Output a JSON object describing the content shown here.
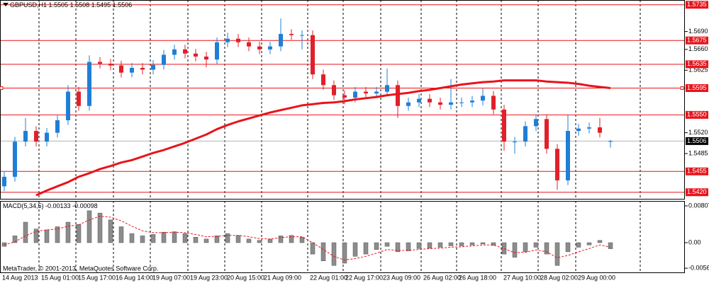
{
  "chart_data": [
    {
      "type": "candlestick",
      "title": "GBPUSD,H1",
      "up_color": "#1f7fd6",
      "down_color": "#e0202a",
      "open": [
        1.543,
        1.5446,
        1.5505,
        1.5523,
        1.5505,
        1.552,
        1.5541,
        1.5589,
        1.5565,
        1.5639,
        1.5636,
        1.5633,
        1.5621,
        1.5629,
        1.5626,
        1.5634,
        1.5651,
        1.566,
        1.5653,
        1.5648,
        1.5643,
        1.5672,
        1.5678,
        1.5672,
        1.5665,
        1.566,
        1.5665,
        1.5686,
        1.5684,
        1.5684,
        1.5618,
        1.56,
        1.5583,
        1.5579,
        1.5589,
        1.5586,
        1.5589,
        1.56,
        1.5565,
        1.5571,
        1.5577,
        1.5571,
        1.5567,
        1.5571,
        1.5571,
        1.5574,
        1.5582,
        1.5559,
        1.5505,
        1.5505,
        1.5531,
        1.5543,
        1.5493,
        1.544,
        1.5523,
        1.5527,
        1.5529,
        1.5505
      ],
      "high": [
        1.5454,
        1.5513,
        1.5545,
        1.5531,
        1.5528,
        1.5549,
        1.56,
        1.5597,
        1.565,
        1.5647,
        1.5644,
        1.5641,
        1.5637,
        1.5637,
        1.5642,
        1.5659,
        1.5668,
        1.5668,
        1.5661,
        1.5656,
        1.568,
        1.5688,
        1.5686,
        1.568,
        1.5673,
        1.5673,
        1.5712,
        1.5694,
        1.5692,
        1.5692,
        1.5626,
        1.5608,
        1.5591,
        1.5597,
        1.5597,
        1.5597,
        1.5628,
        1.5608,
        1.5579,
        1.5585,
        1.5585,
        1.5579,
        1.561,
        1.5579,
        1.5582,
        1.5595,
        1.559,
        1.5567,
        1.5513,
        1.5539,
        1.5551,
        1.5551,
        1.5501,
        1.555,
        1.5535,
        1.5537,
        1.5545,
        1.5508
      ],
      "low": [
        1.5422,
        1.5438,
        1.5497,
        1.5497,
        1.5497,
        1.5512,
        1.5533,
        1.5557,
        1.5557,
        1.5628,
        1.5625,
        1.5613,
        1.5613,
        1.5618,
        1.5618,
        1.5626,
        1.5643,
        1.5645,
        1.564,
        1.563,
        1.5635,
        1.5664,
        1.5664,
        1.5657,
        1.5652,
        1.5652,
        1.5657,
        1.5676,
        1.566,
        1.561,
        1.5592,
        1.5575,
        1.5568,
        1.5571,
        1.5578,
        1.5578,
        1.5581,
        1.5545,
        1.5557,
        1.5563,
        1.5563,
        1.5559,
        1.5559,
        1.5563,
        1.5563,
        1.5566,
        1.5551,
        1.549,
        1.5485,
        1.5497,
        1.5523,
        1.5485,
        1.5424,
        1.5432,
        1.5515,
        1.5519,
        1.5512,
        1.5495
      ],
      "close": [
        1.5446,
        1.5505,
        1.5523,
        1.5505,
        1.552,
        1.5541,
        1.5589,
        1.5565,
        1.5639,
        1.5636,
        1.5633,
        1.5621,
        1.5629,
        1.5626,
        1.5634,
        1.5651,
        1.566,
        1.5653,
        1.5648,
        1.5643,
        1.5672,
        1.5678,
        1.5672,
        1.5665,
        1.566,
        1.5665,
        1.5686,
        1.5684,
        1.5684,
        1.5618,
        1.56,
        1.5583,
        1.5579,
        1.5589,
        1.5586,
        1.5589,
        1.56,
        1.5565,
        1.5571,
        1.5577,
        1.5571,
        1.5567,
        1.5571,
        1.5571,
        1.5574,
        1.5582,
        1.5559,
        1.5505,
        1.5505,
        1.5531,
        1.5543,
        1.5493,
        1.544,
        1.5523,
        1.5527,
        1.5529,
        1.552,
        1.5506
      ],
      "ma": {
        "color": "#e8141b",
        "values": [
          null,
          null,
          null,
          1.5415,
          1.5423,
          1.543,
          1.5437,
          1.5446,
          1.5452,
          1.5459,
          1.5464,
          1.547,
          1.5474,
          1.548,
          1.5486,
          1.5491,
          1.5497,
          1.5503,
          1.551,
          1.5517,
          1.5526,
          1.5533,
          1.5539,
          1.5544,
          1.5549,
          1.5554,
          1.5558,
          1.5562,
          1.5566,
          1.5568,
          1.557,
          1.5571,
          1.5573,
          1.5576,
          1.5578,
          1.558,
          1.5583,
          1.5585,
          1.5587,
          1.559,
          1.5592,
          1.5595,
          1.5598,
          1.5601,
          1.5603,
          1.5605,
          1.5606,
          1.5608,
          1.5608,
          1.5608,
          1.5608,
          1.5606,
          1.5605,
          1.5604,
          1.5602,
          1.5599,
          1.5597,
          1.5595
        ]
      },
      "ylim": [
        1.5409,
        1.5743
      ],
      "yticks": [
        {
          "value": 1.569,
          "label": "1.5690"
        },
        {
          "value": 1.566,
          "label": "1.5660"
        },
        1.5625,
        {
          "value": 1.552,
          "label": "1.5520"
        },
        1.5485
      ],
      "level_color": "#e8141b",
      "levels": [
        1.5735,
        1.5675,
        1.5635,
        1.5595,
        {
          "value": 1.555,
          "label": "1.5550"
        },
        1.5455,
        {
          "value": 1.542,
          "label": "1.5420"
        }
      ],
      "last_price": 1.5506,
      "x_labels": [
        "14 Aug 2013",
        "15 Aug 01:00",
        "15 Aug 17:00",
        "16 Aug 14:00",
        "19 Aug 07:00",
        "19 Aug 23:00",
        "20 Aug 15:00",
        "21 Aug 09:00",
        "22 Aug 01:00",
        "22 Aug 17:00",
        "23 Aug 09:00",
        "26 Aug 02:00",
        "26 Aug 18:00",
        "27 Aug 10:00",
        "28 Aug 02:00",
        "29 Aug 00:00"
      ]
    },
    {
      "type": "bar",
      "title": "MACD(5,34,5)",
      "color": "#8c8c8c",
      "signal_color": "#e8141b",
      "values": [
        -0.0008,
        0.0015,
        0.0045,
        0.003,
        0.0028,
        0.0035,
        0.0045,
        0.004,
        0.007,
        0.0065,
        0.005,
        0.0035,
        0.002,
        0.0015,
        0.0018,
        0.0023,
        0.0024,
        0.002,
        0.0012,
        0.0008,
        0.0015,
        0.002,
        0.0016,
        0.0008,
        0.0005,
        0.0008,
        0.0015,
        0.0016,
        0.0012,
        -0.0025,
        -0.004,
        -0.005,
        -0.0045,
        -0.003,
        -0.0025,
        -0.0015,
        -0.0008,
        -0.002,
        -0.0018,
        -0.0013,
        -0.0012,
        -0.001,
        -0.0007,
        -0.0007,
        -0.0005,
        -0.0003,
        -0.0006,
        -0.0025,
        -0.0032,
        -0.002,
        -0.001,
        -0.0025,
        -0.005,
        -0.002,
        -0.001,
        -0.0005,
        0.0005,
        -0.00133
      ],
      "signal": [
        -0.0005,
        0.0002,
        0.0015,
        0.0025,
        0.0028,
        0.003,
        0.0036,
        0.0039,
        0.005,
        0.0058,
        0.0056,
        0.0048,
        0.0036,
        0.0026,
        0.0022,
        0.0022,
        0.0023,
        0.0022,
        0.0018,
        0.0013,
        0.0014,
        0.0016,
        0.0016,
        0.0013,
        0.0009,
        0.0008,
        0.0011,
        0.0013,
        0.0013,
        0.0,
        -0.0015,
        -0.003,
        -0.0038,
        -0.0035,
        -0.003,
        -0.0023,
        -0.0015,
        -0.0017,
        -0.0017,
        -0.0015,
        -0.0013,
        -0.0012,
        -0.001,
        -0.0009,
        -0.0007,
        -0.0005,
        -0.0005,
        -0.0013,
        -0.0022,
        -0.0021,
        -0.0016,
        -0.002,
        -0.0033,
        -0.0028,
        -0.002,
        -0.0013,
        -0.0005,
        -0.00098
      ],
      "ylim": [
        -0.00652,
        0.00916
      ],
      "yticks": [
        0.00807,
        {
          "value": 0,
          "label": "0.00"
        },
        -0.00561
      ]
    }
  ],
  "footer": "MetaTrader, © 2001-2013, MetaQuotes Software Corp."
}
